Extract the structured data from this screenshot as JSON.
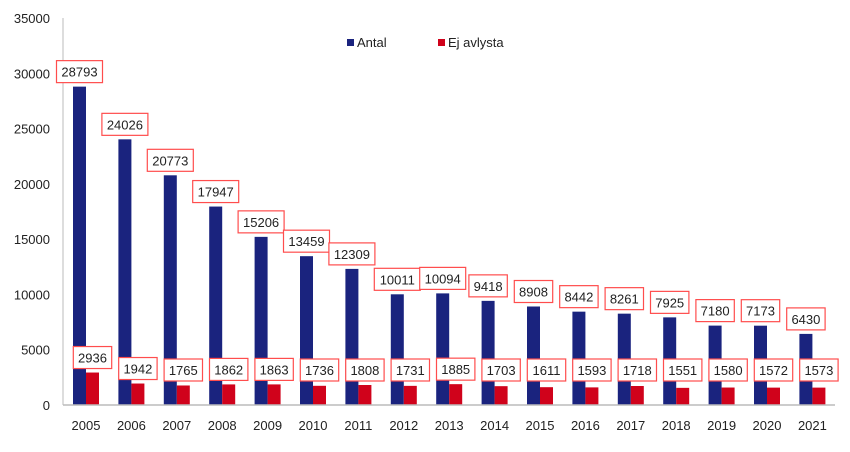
{
  "chart_data": {
    "type": "bar",
    "title": "",
    "xlabel": "",
    "ylabel": "",
    "ylim": [
      0,
      35000
    ],
    "yticks": [
      0,
      5000,
      10000,
      15000,
      20000,
      25000,
      30000,
      35000
    ],
    "grid": false,
    "legend_placement": "top-center",
    "categories": [
      "2005",
      "2006",
      "2007",
      "2008",
      "2009",
      "2010",
      "2011",
      "2012",
      "2013",
      "2014",
      "2015",
      "2016",
      "2017",
      "2018",
      "2019",
      "2020",
      "2021"
    ],
    "series": [
      {
        "name": "Antal",
        "color": "#1a237e",
        "values": [
          28793,
          24026,
          20773,
          17947,
          15206,
          13459,
          12309,
          10011,
          10094,
          9418,
          8908,
          8442,
          8261,
          7925,
          7180,
          7173,
          6430
        ]
      },
      {
        "name": "Ej avlysta",
        "color": "#d0021b",
        "values": [
          2936,
          1942,
          1765,
          1862,
          1863,
          1736,
          1808,
          1731,
          1885,
          1703,
          1611,
          1593,
          1718,
          1551,
          1580,
          1572,
          1573
        ]
      }
    ],
    "data_label_border_color": "#ff4d4d"
  }
}
